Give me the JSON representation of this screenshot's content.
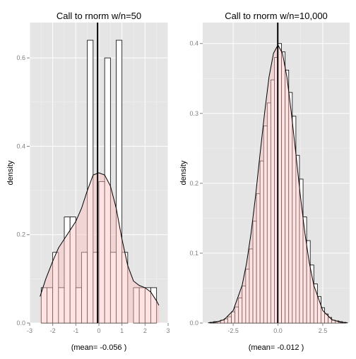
{
  "chart_data": [
    {
      "type": "histogram",
      "title": "Call to rnorm w/n=50",
      "xlabel": "(mean= -0.056 )",
      "ylabel": "density",
      "xlim": [
        -3,
        3
      ],
      "ylim": [
        0,
        0.68
      ],
      "xticks": [
        -3,
        -2,
        -1,
        0,
        1,
        2,
        3
      ],
      "xtick_labels": [
        "-3",
        "-2",
        "-1",
        "0",
        "1",
        "2",
        "3"
      ],
      "yticks": [
        0,
        0.2,
        0.4,
        0.6
      ],
      "ytick_labels": [
        "0.0",
        "0.2",
        "0.4",
        "0.6"
      ],
      "bin_width": 0.25,
      "bin_starts": [
        -2.5,
        -2.25,
        -2.0,
        -1.75,
        -1.5,
        -1.25,
        -1.0,
        -0.75,
        -0.5,
        -0.25,
        0.0,
        0.25,
        0.5,
        0.75,
        1.0,
        1.25,
        1.5,
        1.75,
        2.0,
        2.25
      ],
      "densities": [
        0.08,
        0.08,
        0.16,
        0.08,
        0.24,
        0.24,
        0.08,
        0.16,
        0.64,
        0.16,
        0.32,
        0.6,
        0.16,
        0.64,
        0.16,
        0.0,
        0.08,
        0.08,
        0.08,
        0.08
      ],
      "density_curve": {
        "x": [
          -2.55,
          -2.3,
          -2.0,
          -1.75,
          -1.5,
          -1.25,
          -1.0,
          -0.75,
          -0.5,
          -0.25,
          0.0,
          0.25,
          0.5,
          0.75,
          1.0,
          1.25,
          1.5,
          1.75,
          2.0,
          2.25,
          2.5,
          2.6
        ],
        "y": [
          0.06,
          0.1,
          0.14,
          0.17,
          0.19,
          0.21,
          0.23,
          0.26,
          0.3,
          0.335,
          0.34,
          0.335,
          0.31,
          0.26,
          0.19,
          0.13,
          0.095,
          0.085,
          0.08,
          0.07,
          0.05,
          0.04
        ]
      },
      "mean_line": -0.056,
      "bar_outline_color": "#000000",
      "bar_fill_color": "#ffffff",
      "density_fill_color": "#ffc0c0",
      "panel_color": "#e5e5e5",
      "grid_color": "#ffffff"
    },
    {
      "type": "histogram",
      "title": "Call to rnorm w/n=10,000",
      "xlabel": "(mean= -0.012 )",
      "ylabel": "density",
      "xlim": [
        -4.2,
        4.0
      ],
      "ylim": [
        0,
        0.43
      ],
      "xticks": [
        -2.5,
        0.0,
        2.5
      ],
      "xtick_labels": [
        "-2.5",
        "0.0",
        "2.5"
      ],
      "yticks": [
        0,
        0.1,
        0.2,
        0.3,
        0.4
      ],
      "ytick_labels": [
        "0.0",
        "0.1",
        "0.2",
        "0.3",
        "0.4"
      ],
      "bin_width": 0.2,
      "bin_starts": [
        -3.8,
        -3.6,
        -3.4,
        -3.2,
        -3.0,
        -2.8,
        -2.6,
        -2.4,
        -2.2,
        -2.0,
        -1.8,
        -1.6,
        -1.4,
        -1.2,
        -1.0,
        -0.8,
        -0.6,
        -0.4,
        -0.2,
        0.0,
        0.2,
        0.4,
        0.6,
        0.8,
        1.0,
        1.2,
        1.4,
        1.6,
        1.8,
        2.0,
        2.2,
        2.4,
        2.6,
        2.8,
        3.0,
        3.2,
        3.4,
        3.6
      ],
      "densities": [
        0.001,
        0.002,
        0.002,
        0.004,
        0.006,
        0.009,
        0.016,
        0.023,
        0.036,
        0.053,
        0.077,
        0.106,
        0.146,
        0.185,
        0.232,
        0.282,
        0.315,
        0.348,
        0.38,
        0.4,
        0.388,
        0.362,
        0.33,
        0.296,
        0.24,
        0.206,
        0.152,
        0.118,
        0.083,
        0.056,
        0.038,
        0.022,
        0.013,
        0.008,
        0.004,
        0.003,
        0.002,
        0.001
      ],
      "density_curve": {
        "x": [
          -3.9,
          -3.5,
          -3.0,
          -2.5,
          -2.0,
          -1.75,
          -1.5,
          -1.25,
          -1.0,
          -0.75,
          -0.5,
          -0.25,
          0.0,
          0.25,
          0.5,
          0.75,
          1.0,
          1.25,
          1.5,
          1.75,
          2.0,
          2.5,
          3.0,
          3.5,
          3.9
        ],
        "y": [
          0.0003,
          0.001,
          0.005,
          0.018,
          0.054,
          0.086,
          0.129,
          0.182,
          0.242,
          0.3,
          0.352,
          0.386,
          0.398,
          0.386,
          0.352,
          0.3,
          0.242,
          0.182,
          0.129,
          0.086,
          0.054,
          0.018,
          0.005,
          0.001,
          0.0003
        ]
      },
      "mean_line": -0.012,
      "bar_outline_color": "#000000",
      "bar_fill_color": "#ffffff",
      "density_fill_color": "#ffc0c0",
      "panel_color": "#e5e5e5",
      "grid_color": "#ffffff"
    }
  ]
}
